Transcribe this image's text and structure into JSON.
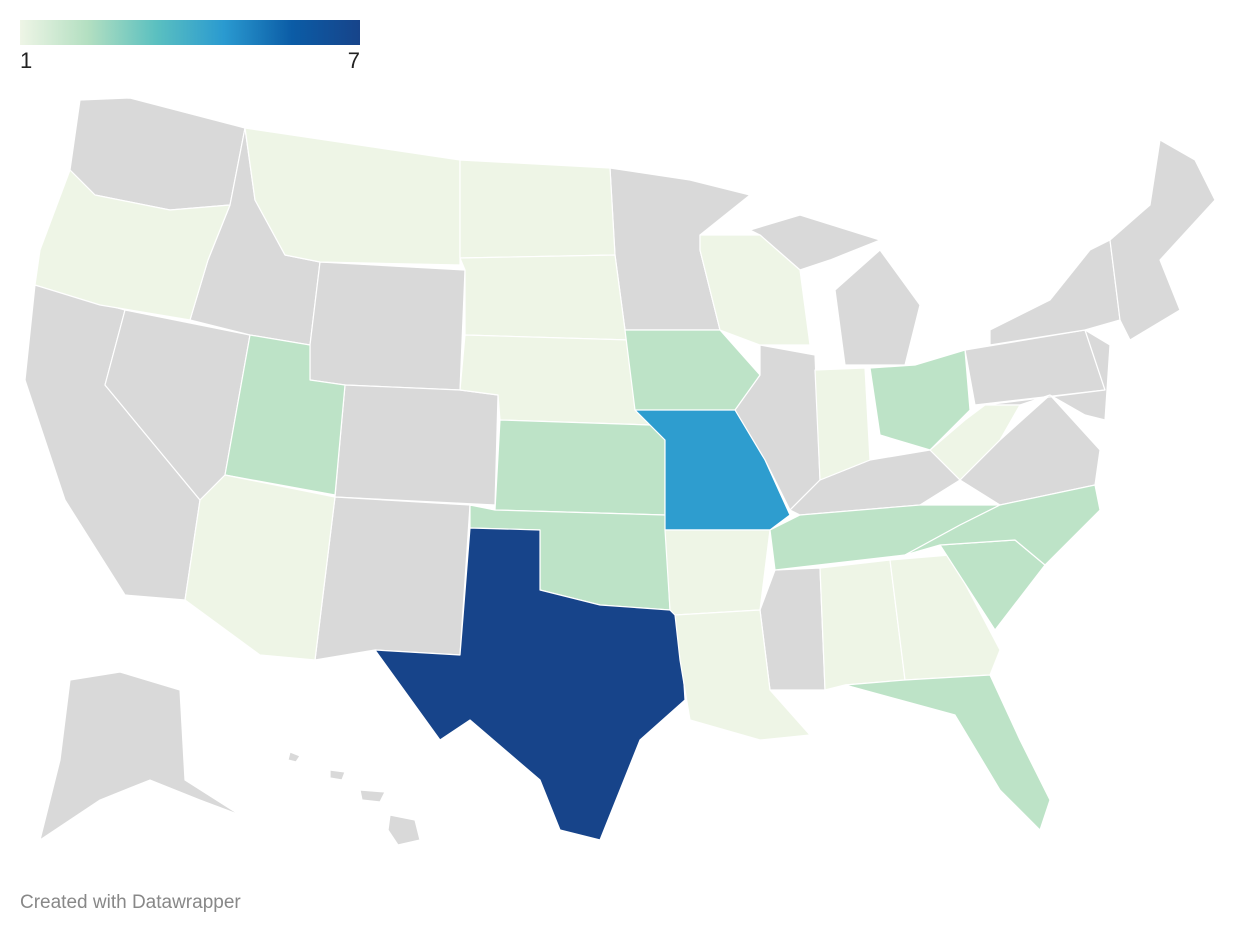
{
  "chart_data": {
    "type": "choropleth",
    "values": [
      1,
      1,
      1,
      1,
      1,
      2,
      1,
      2,
      2,
      7,
      2,
      4.5,
      1,
      1,
      1,
      1,
      2,
      2,
      1,
      1,
      2,
      2,
      2,
      1
    ],
    "colorlim": [
      1,
      7
    ],
    "colorticks": [
      1,
      7
    ],
    "colors": [
      "#eef5e6",
      "#b3dfc1",
      "#5bc0c0",
      "#2a9ad0",
      "#0b5ca6",
      "#17448a"
    ],
    "nodata_color": "#d9d9d9",
    "credit": "Created with Datawrapper"
  }
}
